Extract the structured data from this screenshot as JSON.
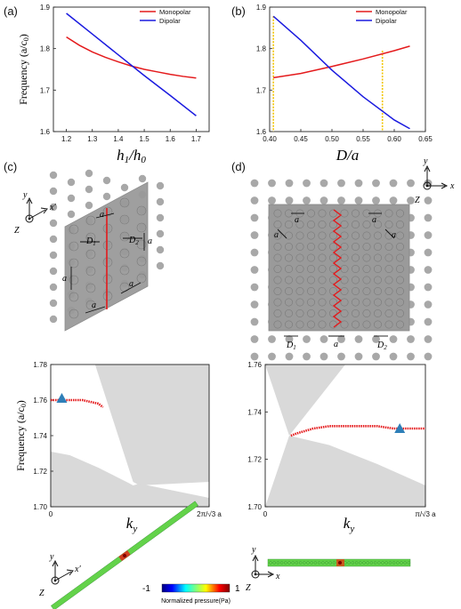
{
  "panels": {
    "a": {
      "label": "(a)"
    },
    "b": {
      "label": "(b)"
    },
    "c": {
      "label": "(c)"
    },
    "d": {
      "label": "(d)"
    }
  },
  "chart_data": [
    {
      "id": "a",
      "type": "line",
      "xlabel": "h1/h0",
      "ylabel": "Frequency (a/c0)",
      "xlim": [
        1.15,
        1.75
      ],
      "ylim": [
        1.6,
        1.9
      ],
      "xticks": [
        "1.2",
        "1.3",
        "1.4",
        "1.5",
        "1.6",
        "1.7"
      ],
      "yticks": [
        "1.6",
        "1.7",
        "1.8",
        "1.9"
      ],
      "legend_position": "top-right",
      "series": [
        {
          "name": "Monopolar",
          "color": "#e41a1c",
          "x": [
            1.2,
            1.25,
            1.3,
            1.35,
            1.4,
            1.45,
            1.5,
            1.55,
            1.6,
            1.65,
            1.7
          ],
          "y": [
            1.828,
            1.808,
            1.792,
            1.779,
            1.768,
            1.758,
            1.75,
            1.744,
            1.738,
            1.733,
            1.729
          ]
        },
        {
          "name": "Dipolar",
          "color": "#1a1adf",
          "x": [
            1.2,
            1.3,
            1.4,
            1.5,
            1.6,
            1.7
          ],
          "y": [
            1.885,
            1.835,
            1.785,
            1.735,
            1.687,
            1.638
          ]
        }
      ]
    },
    {
      "id": "b",
      "type": "line",
      "xlabel": "D/a",
      "xlim": [
        0.4,
        0.65
      ],
      "ylim": [
        1.6,
        1.9
      ],
      "xticks": [
        "0.40",
        "0.45",
        "0.50",
        "0.55",
        "0.60",
        "0.65"
      ],
      "yticks": [
        "1.6",
        "1.7",
        "1.8",
        "1.9"
      ],
      "legend_position": "top-right",
      "markers_x": [
        0.406,
        0.581
      ],
      "series": [
        {
          "name": "Monopolar",
          "color": "#e41a1c",
          "x": [
            0.406,
            0.45,
            0.5,
            0.55,
            0.6,
            0.625
          ],
          "y": [
            1.73,
            1.74,
            1.757,
            1.775,
            1.795,
            1.806
          ]
        },
        {
          "name": "Dipolar",
          "color": "#1a1adf",
          "x": [
            0.406,
            0.45,
            0.5,
            0.55,
            0.6,
            0.625
          ],
          "y": [
            1.878,
            1.82,
            1.748,
            1.684,
            1.628,
            1.607
          ]
        }
      ]
    },
    {
      "id": "c",
      "type": "line",
      "xlabel": "k_y",
      "ylabel": "Frequency (a/c0)",
      "xlim": [
        0,
        1
      ],
      "ylim": [
        1.7,
        1.78
      ],
      "xticks": [
        "0",
        "2π/√3 a"
      ],
      "yticks": [
        "1.70",
        "1.72",
        "1.74",
        "1.76",
        "1.78"
      ],
      "series": [
        {
          "name": "",
          "color": "#e41a1c",
          "x": [
            0.0,
            0.05,
            0.1,
            0.15,
            0.2,
            0.25,
            0.3,
            0.33
          ],
          "y": [
            1.76,
            1.76,
            1.76,
            1.76,
            1.76,
            1.759,
            1.758,
            1.756
          ]
        }
      ],
      "marker": {
        "x": 0.07,
        "y": 1.761
      }
    },
    {
      "id": "d",
      "type": "line",
      "xlabel": "k_y",
      "xlim": [
        0,
        1
      ],
      "ylim": [
        1.7,
        1.76
      ],
      "xticks": [
        "0",
        "π/√3 a"
      ],
      "yticks": [
        "1.70",
        "1.72",
        "1.74",
        "1.76"
      ],
      "series": [
        {
          "name": "",
          "color": "#e41a1c",
          "x": [
            0.16,
            0.2,
            0.25,
            0.3,
            0.4,
            0.5,
            0.6,
            0.7,
            0.8,
            0.9,
            1.0
          ],
          "y": [
            1.73,
            1.731,
            1.732,
            1.733,
            1.734,
            1.734,
            1.734,
            1.734,
            1.733,
            1.733,
            1.733
          ]
        }
      ],
      "marker": {
        "x": 0.84,
        "y": 1.733
      }
    }
  ],
  "colorbar": {
    "min": "-1",
    "max": "1",
    "label": "Normalized pressure(Pa)"
  },
  "schematic": {
    "c": {
      "axis_y": "y",
      "axis_x": "x′",
      "axis_z": "Z",
      "a": "a",
      "d1": "D",
      "d2": "D"
    },
    "d": {
      "axis_y": "y",
      "axis_x": "x",
      "axis_z": "Z",
      "a": "a",
      "d1": "D",
      "d2": "D"
    }
  }
}
